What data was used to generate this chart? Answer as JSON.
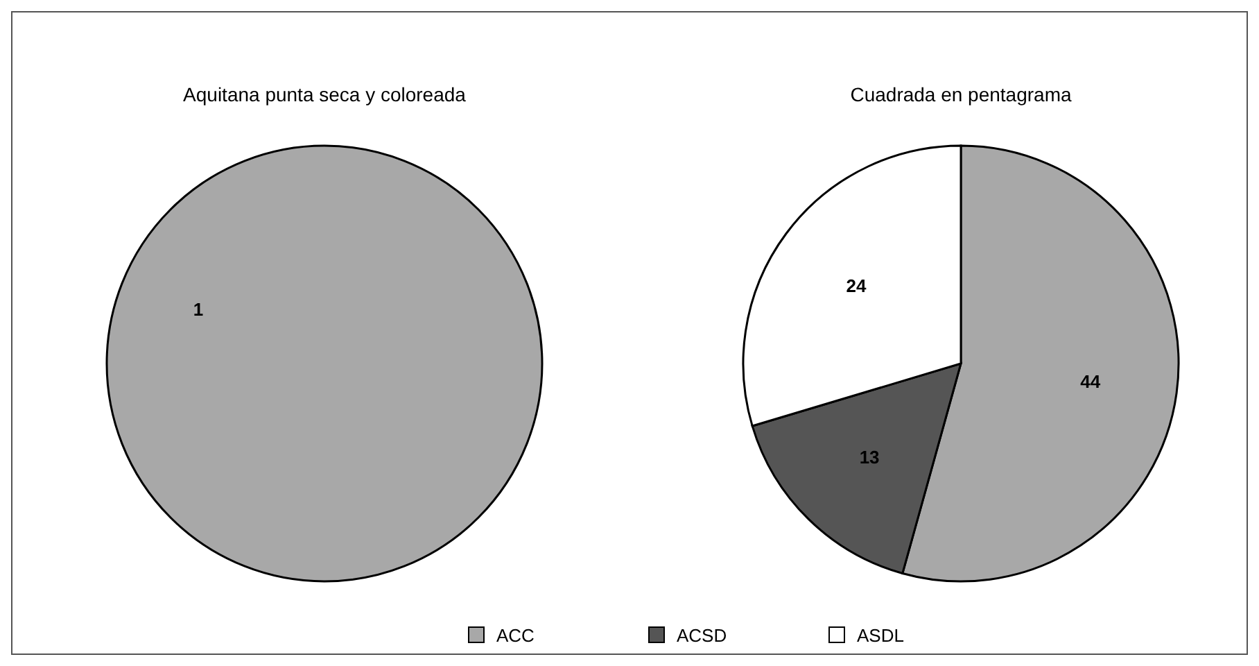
{
  "chart_data": [
    {
      "type": "pie",
      "title": "Aquitana punta seca y coloreada",
      "categories": [
        null
      ],
      "values": [
        1
      ],
      "colors": [
        "#a8a8a8"
      ],
      "data_labels": true
    },
    {
      "type": "pie",
      "title": "Cuadrada en pentagrama",
      "categories": [
        "ACC",
        "ACSD",
        "ASDL"
      ],
      "values": [
        44,
        13,
        24
      ],
      "colors": [
        "#a8a8a8",
        "#555555",
        "#ffffff"
      ],
      "data_labels": true,
      "legend": "bottom"
    }
  ]
}
